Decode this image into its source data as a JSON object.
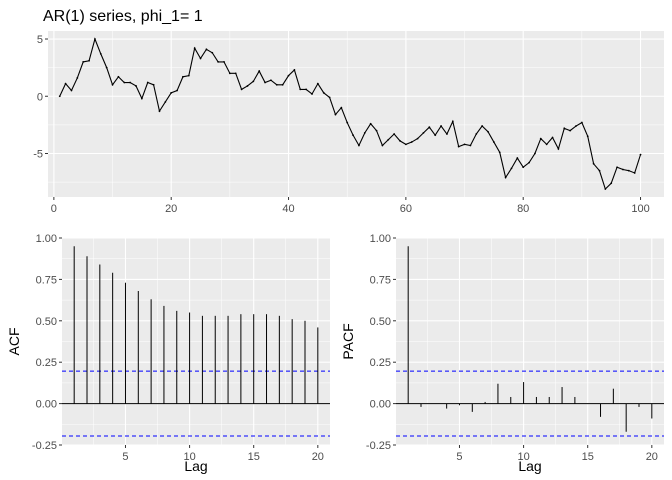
{
  "chart_data": [
    {
      "type": "line",
      "title": "AR(1) series, phi_1= 1",
      "xlabel": "",
      "ylabel": "",
      "xlim": [
        -1,
        104
      ],
      "ylim": [
        -8.8,
        5.7
      ],
      "xticks": [
        0,
        20,
        40,
        60,
        80,
        100
      ],
      "yticks": [
        -5,
        0,
        5
      ],
      "grid": true,
      "x_start": 1,
      "values": [
        0,
        1.1,
        0.5,
        1.6,
        3.0,
        3.1,
        5.0,
        3.7,
        2.5,
        1.0,
        1.7,
        1.2,
        1.2,
        0.9,
        -0.2,
        1.2,
        1.0,
        -1.3,
        -0.5,
        0.3,
        0.5,
        1.7,
        1.8,
        4.2,
        3.3,
        4.1,
        3.8,
        3.0,
        3.0,
        2.0,
        2.0,
        0.6,
        0.9,
        1.3,
        2.2,
        1.2,
        1.4,
        1.0,
        1.0,
        1.8,
        2.3,
        0.6,
        0.6,
        0.2,
        1.1,
        0.3,
        -0.1,
        -1.6,
        -1.0,
        -2.3,
        -3.4,
        -4.3,
        -3.2,
        -2.4,
        -3.0,
        -4.3,
        -3.8,
        -3.3,
        -3.9,
        -4.2,
        -4.0,
        -3.7,
        -3.2,
        -2.7,
        -3.4,
        -2.6,
        -3.3,
        -2.2,
        -4.4,
        -4.2,
        -4.3,
        -3.3,
        -2.6,
        -3.1,
        -4.0,
        -4.9,
        -7.1,
        -6.3,
        -5.4,
        -6.2,
        -5.8,
        -5.0,
        -3.7,
        -4.2,
        -3.6,
        -4.6,
        -2.8,
        -3.0,
        -2.6,
        -2.3,
        -3.5,
        -5.9,
        -6.5,
        -8.1,
        -7.6,
        -6.2,
        -6.4,
        -6.5,
        -6.7,
        -5.1
      ]
    },
    {
      "type": "bar",
      "xlabel": "Lag",
      "ylabel": "ACF",
      "xlim": [
        0.05,
        20.95
      ],
      "ylim": [
        -0.25,
        1.0
      ],
      "xticks": [
        5,
        10,
        15,
        20
      ],
      "yticks": [
        -0.25,
        0.0,
        0.25,
        0.5,
        0.75,
        1.0
      ],
      "ytick_labels": [
        "-0.25",
        "0.00",
        "0.25",
        "0.50",
        "0.75",
        "1.00"
      ],
      "grid": true,
      "ci": 0.196,
      "lags": [
        1,
        2,
        3,
        4,
        5,
        6,
        7,
        8,
        9,
        10,
        11,
        12,
        13,
        14,
        15,
        16,
        17,
        18,
        19,
        20
      ],
      "values": [
        0.95,
        0.89,
        0.84,
        0.79,
        0.73,
        0.68,
        0.63,
        0.59,
        0.56,
        0.55,
        0.53,
        0.53,
        0.53,
        0.54,
        0.54,
        0.54,
        0.53,
        0.51,
        0.5,
        0.46
      ]
    },
    {
      "type": "bar",
      "xlabel": "Lag",
      "ylabel": "PACF",
      "xlim": [
        0.05,
        20.95
      ],
      "ylim": [
        -0.25,
        1.0
      ],
      "xticks": [
        5,
        10,
        15,
        20
      ],
      "yticks": [
        -0.25,
        0.0,
        0.25,
        0.5,
        0.75,
        1.0
      ],
      "ytick_labels": [
        "-0.25",
        "0.00",
        "0.25",
        "0.50",
        "0.75",
        "1.00"
      ],
      "grid": true,
      "ci": 0.196,
      "lags": [
        1,
        2,
        3,
        4,
        5,
        6,
        7,
        8,
        9,
        10,
        11,
        12,
        13,
        14,
        15,
        16,
        17,
        18,
        19,
        20
      ],
      "values": [
        0.95,
        -0.02,
        0.0,
        -0.03,
        -0.01,
        -0.05,
        0.01,
        0.12,
        0.04,
        0.13,
        0.04,
        0.04,
        0.1,
        0.04,
        0.0,
        -0.08,
        0.09,
        -0.17,
        -0.02,
        -0.09
      ]
    }
  ]
}
